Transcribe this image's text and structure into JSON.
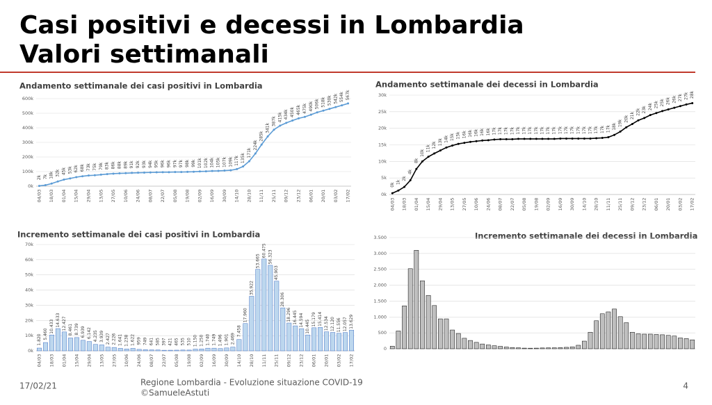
{
  "header": {
    "title": [
      "Casi positivi e decessi in Lombardia",
      "Valori settimanali"
    ]
  },
  "footer": {
    "date": "17/02/21",
    "source": "Regione Lombardia - Evoluzione situazione COVID-19",
    "credit": "©SamueleAstuti",
    "page": "4"
  },
  "chart_data": [
    {
      "type": "line",
      "title": "Andamento settimanale dei casi positivi in Lombardia",
      "color": "#5b9bd5",
      "categories": [
        "04/03",
        null,
        "18/03",
        null,
        "01/04",
        null,
        "15/04",
        null,
        "29/04",
        null,
        "13/05",
        null,
        "27/05",
        null,
        "10/06",
        null,
        "24/06",
        null,
        "08/07",
        null,
        "22/07",
        null,
        "05/08",
        null,
        "19/08",
        null,
        "02/09",
        null,
        "16/09",
        null,
        "30/09",
        null,
        "14/10",
        null,
        "28/10",
        null,
        "11/11",
        null,
        "25/11",
        null,
        "09/12",
        null,
        "23/12",
        null,
        "06/01",
        null,
        "20/01",
        null,
        "03/02",
        null,
        "17/02"
      ],
      "values": [
        2000,
        7000,
        18000,
        32000,
        45000,
        53000,
        62000,
        68000,
        73000,
        75000,
        79000,
        83000,
        86000,
        88000,
        89000,
        91000,
        92000,
        93000,
        94000,
        95000,
        96000,
        96000,
        97000,
        97000,
        98000,
        99000,
        101000,
        102000,
        104000,
        105000,
        107000,
        109000,
        117000,
        135000,
        171000,
        224000,
        285000,
        341000,
        387000,
        415000,
        434000,
        450000,
        465000,
        475000,
        490000,
        506000,
        518000,
        530000,
        542000,
        554000,
        567000
      ],
      "value_labels": [
        "2k",
        "7k",
        "18k",
        "32k",
        "45k",
        "53k",
        "62k",
        "68k",
        "73k",
        "75k",
        "79k",
        "83k",
        "86k",
        "88k",
        "89k",
        "91k",
        "92k",
        "93k",
        "94k",
        "95k",
        "96k",
        "96k",
        "97k",
        "97k",
        "98k",
        "99k",
        "101k",
        "102k",
        "104k",
        "105k",
        "107k",
        "109k",
        "117k",
        "135k",
        "171k",
        "224k",
        "285k",
        "341k",
        "387k",
        "415k",
        "434k",
        "450k",
        "465k",
        "475k",
        "490k",
        "506k",
        "518k",
        "530k",
        "542k",
        "554k",
        "567k"
      ],
      "ylim": [
        0,
        600000
      ],
      "yticks": [
        {
          "value": 0,
          "label": "0k"
        },
        {
          "value": 100000,
          "label": "100k"
        },
        {
          "value": 200000,
          "label": "200k"
        },
        {
          "value": 300000,
          "label": "300k"
        },
        {
          "value": 400000,
          "label": "400k"
        },
        {
          "value": 500000,
          "label": "500k"
        },
        {
          "value": 600000,
          "label": "600k"
        }
      ],
      "grid": true
    },
    {
      "type": "line",
      "title": "Andamento settimanale dei decessi in Lombardia",
      "color": "#000000",
      "categories": [
        "04/03",
        null,
        "18/03",
        null,
        "01/04",
        null,
        "15/04",
        null,
        "29/04",
        null,
        "13/05",
        null,
        "27/05",
        null,
        "10/06",
        null,
        "24/06",
        null,
        "08/07",
        null,
        "22/07",
        null,
        "05/08",
        null,
        "19/08",
        null,
        "02/09",
        null,
        "16/09",
        null,
        "30/09",
        null,
        "14/10",
        null,
        "28/10",
        null,
        "11/11",
        null,
        "25/11",
        null,
        "09/12",
        null,
        "23/12",
        null,
        "06/01",
        null,
        "20/01",
        null,
        "03/02",
        null,
        "17/02"
      ],
      "values": [
        400,
        1200,
        2300,
        4300,
        7700,
        10000,
        11400,
        12400,
        13300,
        14200,
        14800,
        15300,
        15600,
        15900,
        16100,
        16300,
        16400,
        16600,
        16700,
        16700,
        16700,
        16800,
        16800,
        16800,
        16800,
        16800,
        16800,
        16800,
        16900,
        16900,
        16900,
        16900,
        16900,
        16900,
        17000,
        17100,
        17300,
        18000,
        19000,
        20300,
        21300,
        22400,
        23100,
        24000,
        24600,
        25200,
        25700,
        26200,
        26700,
        27200,
        27600
      ],
      "value_labels": [
        "0k",
        "1k",
        "2k",
        "4k",
        "8k",
        "10k",
        "11k",
        "12k",
        "13k",
        "14k",
        "15k",
        "15k",
        "16k",
        "16k",
        "16k",
        "16k",
        "16k",
        "17k",
        "17k",
        "17k",
        "17k",
        "17k",
        "17k",
        "17k",
        "17k",
        "17k",
        "17k",
        "17k",
        "17k",
        "17k",
        "17k",
        "17k",
        "17k",
        "17k",
        "17k",
        "17k",
        "17k",
        "18k",
        "19k",
        "20k",
        "21k",
        "22k",
        "23k",
        "24k",
        "25k",
        "25k",
        "26k",
        "26k",
        "27k",
        "27k",
        "28k"
      ],
      "ylim": [
        0,
        30000
      ],
      "yticks": [
        {
          "value": 0,
          "label": "0k"
        },
        {
          "value": 5000,
          "label": "5k"
        },
        {
          "value": 10000,
          "label": "10k"
        },
        {
          "value": 15000,
          "label": "15k"
        },
        {
          "value": 20000,
          "label": "20k"
        },
        {
          "value": 25000,
          "label": "25k"
        },
        {
          "value": 30000,
          "label": "30k"
        }
      ],
      "grid": true
    },
    {
      "type": "bar",
      "title": "Incremento settimanale dei casi positivi in Lombardia",
      "color": "#bdd7ee",
      "categories": [
        "04/03",
        null,
        "18/03",
        null,
        "01/04",
        null,
        "15/04",
        null,
        "29/04",
        null,
        "13/05",
        null,
        "27/05",
        null,
        "10/06",
        null,
        "24/06",
        null,
        "08/07",
        null,
        "22/07",
        null,
        "05/08",
        null,
        "19/08",
        null,
        "02/09",
        null,
        "16/09",
        null,
        "30/09",
        null,
        "14/10",
        null,
        "28/10",
        null,
        "11/11",
        null,
        "25/11",
        null,
        "09/12",
        null,
        "23/12",
        null,
        "06/01",
        null,
        "20/01",
        null,
        "03/02",
        null,
        "17/02"
      ],
      "values": [
        1820,
        5460,
        10433,
        14633,
        12427,
        8461,
        8739,
        6939,
        6142,
        4235,
        3939,
        2427,
        2226,
        1641,
        1238,
        1622,
        959,
        749,
        641,
        585,
        397,
        421,
        465,
        535,
        510,
        1150,
        1250,
        1740,
        1749,
        1496,
        1901,
        2469,
        7458,
        17960,
        35922,
        53665,
        60475,
        56323,
        45903,
        28306,
        18296,
        16445,
        14594,
        10445,
        15179,
        15414,
        12534,
        12120,
        11556,
        12057,
        13629
      ],
      "value_labels": [
        "1.820",
        "5.460",
        "10.433",
        "14.633",
        "12.427",
        "8.461",
        "8.739",
        "6.939",
        "6.142",
        "4.235",
        "3.939",
        "2.427",
        "2.226",
        "1.641",
        "1.238",
        "1.622",
        "959",
        "749",
        "641",
        "585",
        "397",
        "421",
        "465",
        "535",
        "510",
        "1.150",
        "1.250",
        "1.740",
        "1.749",
        "1.496",
        "1.901",
        "2.469",
        "7.458",
        "17.960",
        "35.922",
        "53.665",
        "60.475",
        "56.323",
        "45.903",
        "28.306",
        "18.296",
        "16.445",
        "14.594",
        "10.445",
        "15.179",
        "15.414",
        "12.534",
        "12.120",
        "11.556",
        "12.057",
        "13.629"
      ],
      "ylim": [
        0,
        70000
      ],
      "yticks": [
        {
          "value": 0,
          "label": "0k"
        },
        {
          "value": 10000,
          "label": "10k"
        },
        {
          "value": 20000,
          "label": "20k"
        },
        {
          "value": 30000,
          "label": "30k"
        },
        {
          "value": 40000,
          "label": "40k"
        },
        {
          "value": 50000,
          "label": "50k"
        },
        {
          "value": 60000,
          "label": "60k"
        },
        {
          "value": 70000,
          "label": "70k"
        }
      ],
      "grid": true
    },
    {
      "type": "bar",
      "title": "Incremento settimanale dei decessi in Lombardia",
      "color": "#bfbfbf",
      "values": [
        80,
        560,
        1350,
        2520,
        3100,
        2140,
        1680,
        1360,
        940,
        940,
        590,
        480,
        330,
        260,
        200,
        150,
        120,
        95,
        75,
        55,
        40,
        30,
        20,
        18,
        20,
        25,
        28,
        30,
        35,
        45,
        60,
        110,
        240,
        520,
        880,
        1100,
        1160,
        1250,
        1010,
        820,
        520,
        470,
        460,
        460,
        450,
        440,
        420,
        400,
        340,
        320,
        280
      ],
      "ylim": [
        0,
        3500
      ],
      "yticks": [
        0,
        500,
        {
          "value": 1000,
          "label": "1.000"
        },
        {
          "value": 1500,
          "label": "1.500"
        },
        {
          "value": 2000,
          "label": "2.000"
        },
        {
          "value": 2500,
          "label": "2.500"
        },
        {
          "value": 3000,
          "label": "3.000"
        },
        {
          "value": 3500,
          "label": "3.500"
        }
      ],
      "grid": true
    }
  ]
}
